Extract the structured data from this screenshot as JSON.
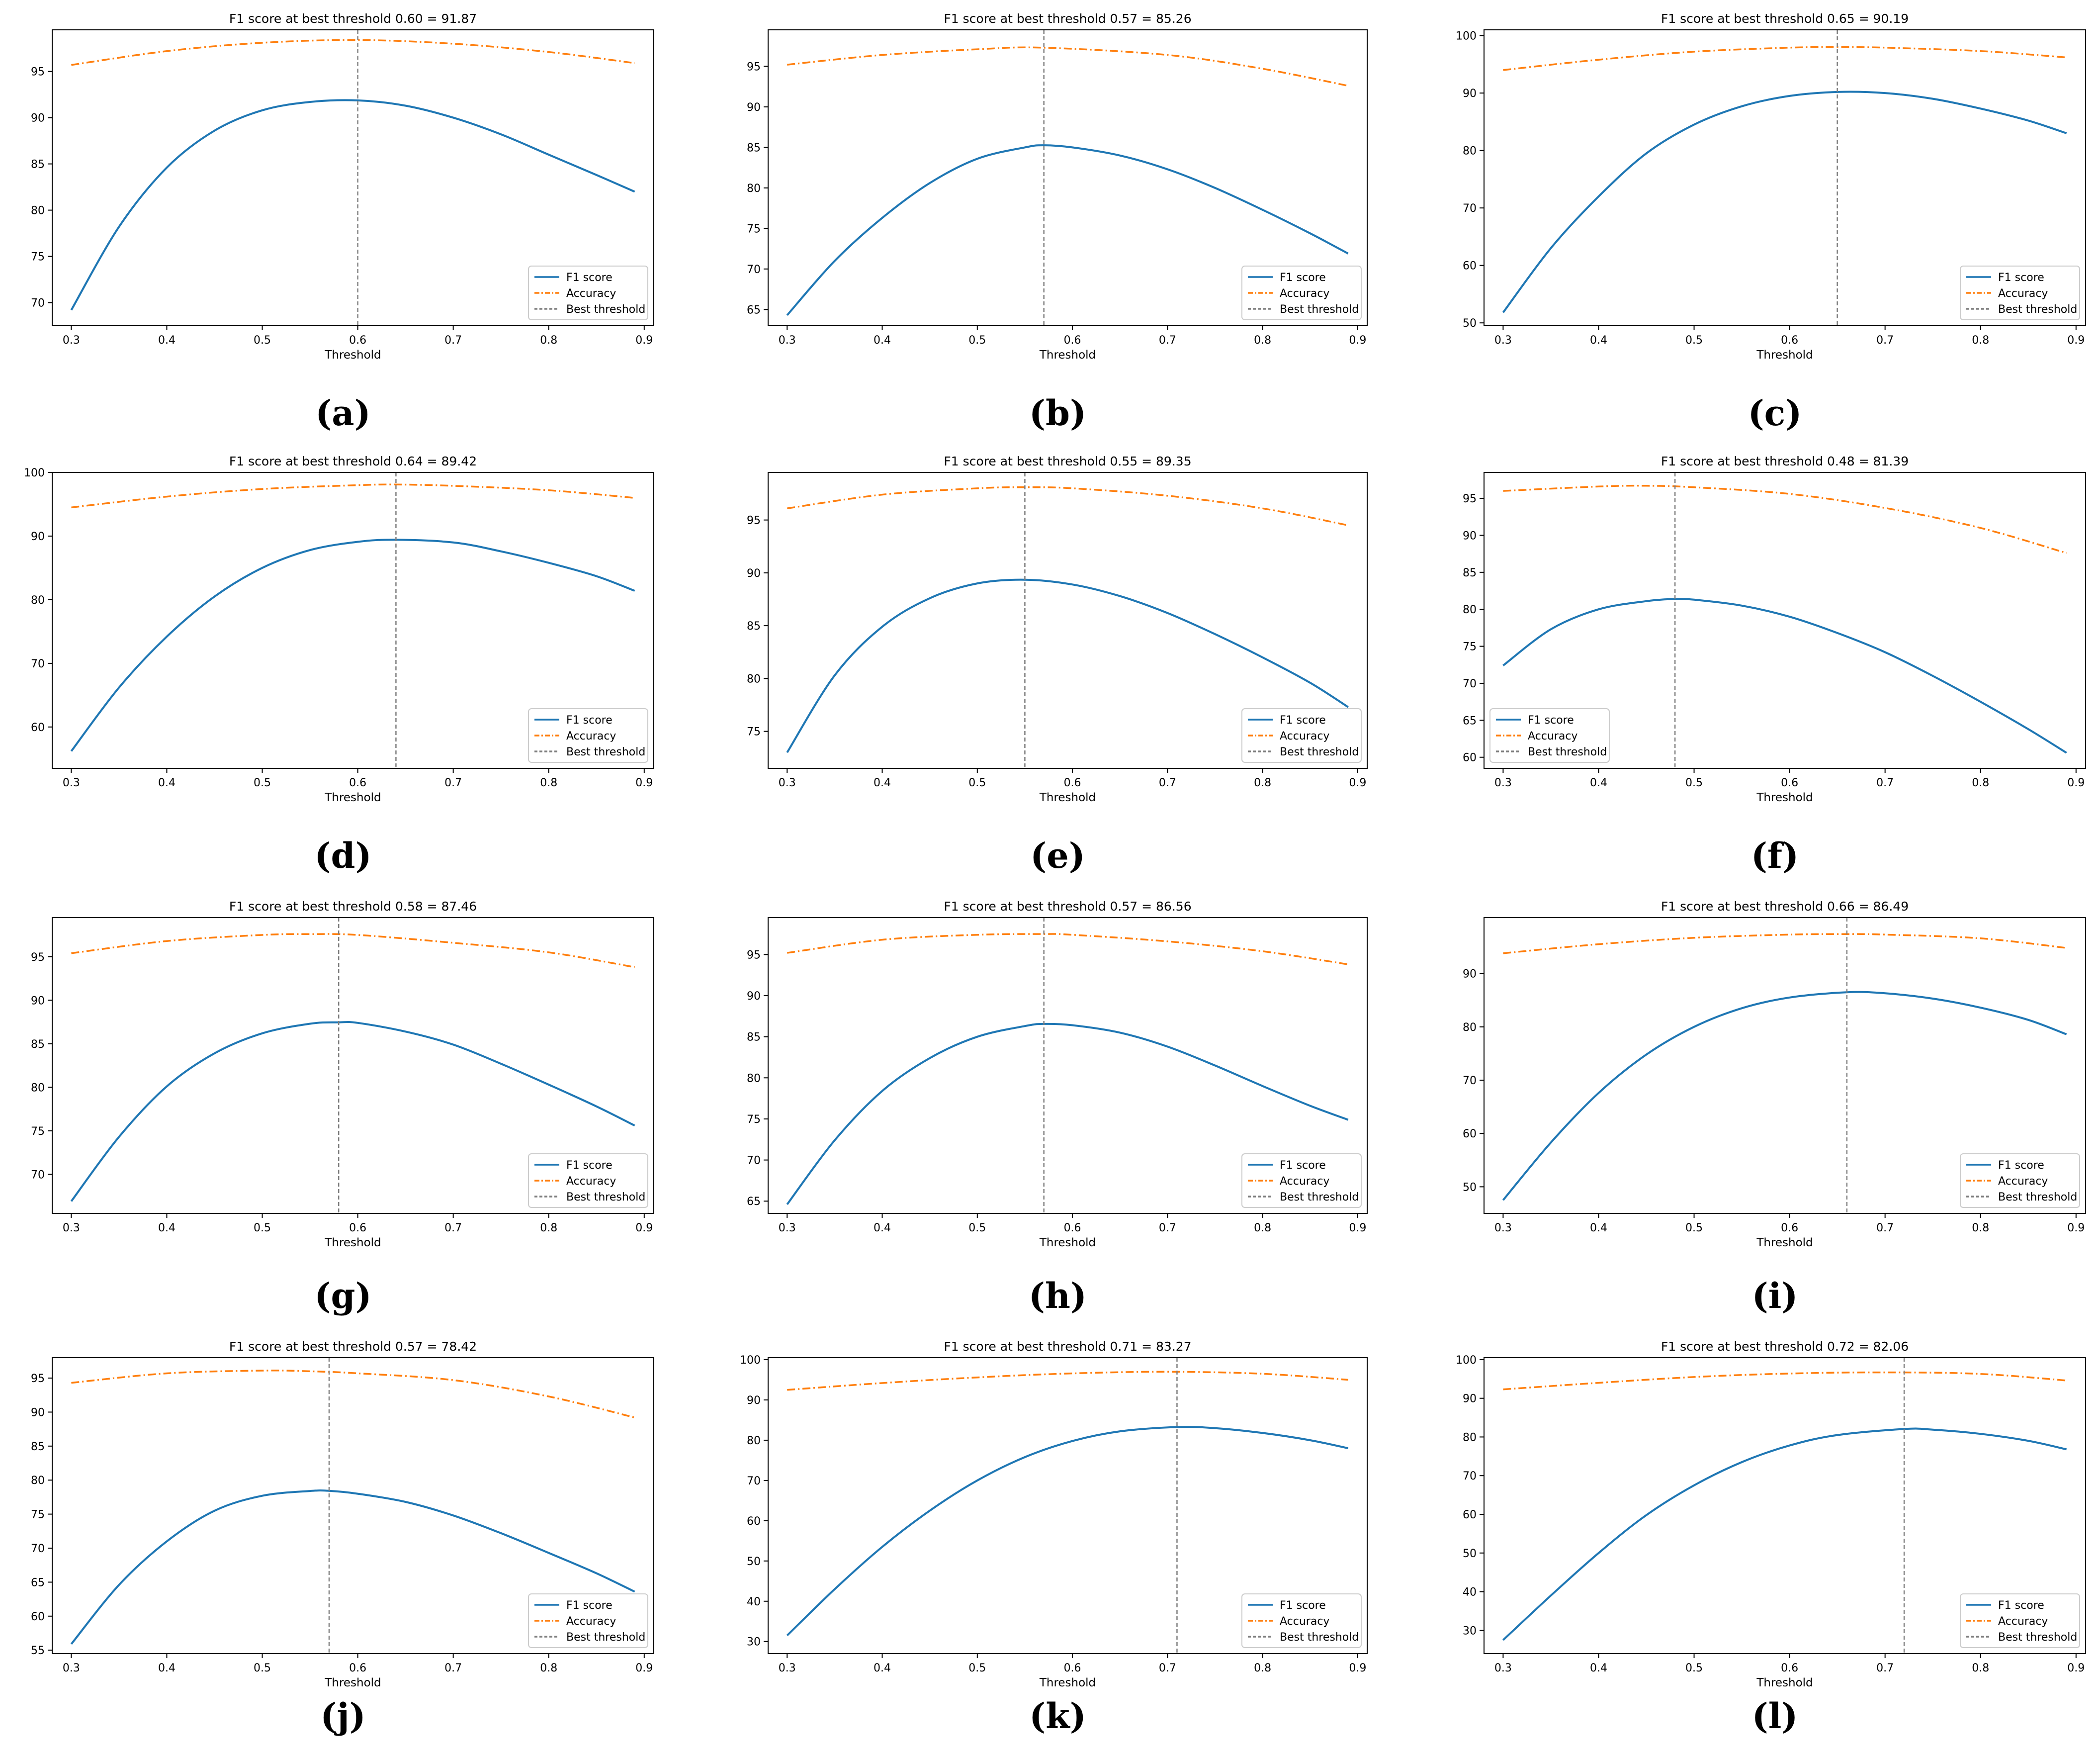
{
  "figure": {
    "panel_labels": [
      "a",
      "b",
      "c",
      "d",
      "e",
      "f",
      "g",
      "h",
      "i",
      "j",
      "k",
      "l"
    ]
  },
  "common": {
    "xlabel": "Threshold",
    "legend": [
      "F1 score",
      "Accuracy",
      "Best threshold"
    ],
    "colors": {
      "f1": "#1f77b4",
      "accuracy": "#ff7f0e",
      "best": "#7f7f7f"
    }
  },
  "chart_data": [
    {
      "type": "line",
      "panel": "a",
      "title": "F1 score at best threshold 0.60 = 91.87",
      "xlabel": "Threshold",
      "xlim": [
        0.28,
        0.91
      ],
      "ylim": [
        67.5,
        99.5
      ],
      "xticks": [
        0.3,
        0.4,
        0.5,
        0.6,
        0.7,
        0.8,
        0.9
      ],
      "yticks": [
        70,
        75,
        80,
        85,
        90,
        95
      ],
      "best_threshold": 0.6,
      "legend_position": "lower-right",
      "series": [
        {
          "name": "F1 score",
          "x": [
            0.3,
            0.35,
            0.4,
            0.45,
            0.5,
            0.55,
            0.6,
            0.65,
            0.7,
            0.75,
            0.8,
            0.85,
            0.89
          ],
          "y": [
            69.2,
            78.2,
            84.6,
            88.6,
            90.8,
            91.7,
            91.87,
            91.3,
            90.0,
            88.2,
            86.0,
            83.8,
            82.0
          ]
        },
        {
          "name": "Accuracy",
          "x": [
            0.3,
            0.4,
            0.5,
            0.6,
            0.7,
            0.8,
            0.89
          ],
          "y": [
            95.7,
            97.2,
            98.1,
            98.4,
            98.0,
            97.1,
            95.9
          ]
        }
      ]
    },
    {
      "type": "line",
      "panel": "b",
      "title": "F1 score at best threshold 0.57 = 85.26",
      "xlabel": "Threshold",
      "xlim": [
        0.28,
        0.91
      ],
      "ylim": [
        63,
        99.5
      ],
      "xticks": [
        0.3,
        0.4,
        0.5,
        0.6,
        0.7,
        0.8,
        0.9
      ],
      "yticks": [
        65,
        70,
        75,
        80,
        85,
        90,
        95
      ],
      "best_threshold": 0.57,
      "legend_position": "lower-right",
      "series": [
        {
          "name": "F1 score",
          "x": [
            0.3,
            0.35,
            0.4,
            0.45,
            0.5,
            0.55,
            0.57,
            0.6,
            0.65,
            0.7,
            0.75,
            0.8,
            0.85,
            0.89
          ],
          "y": [
            64.3,
            71.0,
            76.3,
            80.6,
            83.6,
            85.0,
            85.26,
            85.0,
            84.0,
            82.3,
            80.0,
            77.3,
            74.4,
            71.9
          ]
        },
        {
          "name": "Accuracy",
          "x": [
            0.3,
            0.4,
            0.5,
            0.57,
            0.7,
            0.8,
            0.89
          ],
          "y": [
            95.2,
            96.4,
            97.1,
            97.3,
            96.4,
            94.7,
            92.6
          ]
        }
      ]
    },
    {
      "type": "line",
      "panel": "c",
      "title": "F1 score at best threshold 0.65 = 90.19",
      "xlabel": "Threshold",
      "xlim": [
        0.28,
        0.91
      ],
      "ylim": [
        49.5,
        101
      ],
      "xticks": [
        0.3,
        0.4,
        0.5,
        0.6,
        0.7,
        0.8,
        0.9
      ],
      "yticks": [
        50,
        60,
        70,
        80,
        90,
        100
      ],
      "best_threshold": 0.65,
      "legend_position": "lower-right",
      "series": [
        {
          "name": "F1 score",
          "x": [
            0.3,
            0.35,
            0.4,
            0.45,
            0.5,
            0.55,
            0.6,
            0.65,
            0.7,
            0.75,
            0.8,
            0.85,
            0.89
          ],
          "y": [
            51.8,
            63.0,
            72.0,
            79.5,
            84.5,
            87.7,
            89.5,
            90.19,
            90.0,
            89.0,
            87.3,
            85.2,
            83.0
          ]
        },
        {
          "name": "Accuracy",
          "x": [
            0.3,
            0.4,
            0.5,
            0.6,
            0.65,
            0.7,
            0.8,
            0.89
          ],
          "y": [
            94.0,
            95.8,
            97.2,
            97.9,
            98.0,
            97.9,
            97.3,
            96.2
          ]
        }
      ]
    },
    {
      "type": "line",
      "panel": "d",
      "title": "F1 score at best threshold 0.64 = 89.42",
      "xlabel": "Threshold",
      "xlim": [
        0.28,
        0.91
      ],
      "ylim": [
        53.5,
        100
      ],
      "xticks": [
        0.3,
        0.4,
        0.5,
        0.6,
        0.7,
        0.8,
        0.9
      ],
      "yticks": [
        60,
        70,
        80,
        90,
        100
      ],
      "best_threshold": 0.64,
      "legend_position": "lower-right",
      "series": [
        {
          "name": "F1 score",
          "x": [
            0.3,
            0.35,
            0.4,
            0.45,
            0.5,
            0.55,
            0.6,
            0.64,
            0.7,
            0.75,
            0.8,
            0.85,
            0.89
          ],
          "y": [
            56.2,
            66.2,
            74.2,
            80.5,
            85.0,
            87.8,
            89.1,
            89.42,
            89.0,
            87.6,
            85.8,
            83.7,
            81.4
          ]
        },
        {
          "name": "Accuracy",
          "x": [
            0.3,
            0.4,
            0.5,
            0.6,
            0.64,
            0.7,
            0.8,
            0.89
          ],
          "y": [
            94.5,
            96.2,
            97.4,
            98.0,
            98.1,
            97.9,
            97.2,
            96.0
          ]
        }
      ]
    },
    {
      "type": "line",
      "panel": "e",
      "title": "F1 score at best threshold 0.55 = 89.35",
      "xlabel": "Threshold",
      "xlim": [
        0.28,
        0.91
      ],
      "ylim": [
        71.5,
        99.5
      ],
      "xticks": [
        0.3,
        0.4,
        0.5,
        0.6,
        0.7,
        0.8,
        0.9
      ],
      "yticks": [
        75,
        80,
        85,
        90,
        95
      ],
      "best_threshold": 0.55,
      "legend_position": "lower-right",
      "series": [
        {
          "name": "F1 score",
          "x": [
            0.3,
            0.35,
            0.4,
            0.45,
            0.5,
            0.55,
            0.6,
            0.65,
            0.7,
            0.75,
            0.8,
            0.85,
            0.89
          ],
          "y": [
            73.0,
            80.3,
            84.9,
            87.6,
            89.0,
            89.35,
            88.9,
            87.8,
            86.2,
            84.2,
            82.0,
            79.6,
            77.3
          ]
        },
        {
          "name": "Accuracy",
          "x": [
            0.3,
            0.4,
            0.5,
            0.55,
            0.6,
            0.7,
            0.8,
            0.89
          ],
          "y": [
            96.1,
            97.4,
            98.0,
            98.1,
            98.0,
            97.3,
            96.1,
            94.5
          ]
        }
      ]
    },
    {
      "type": "line",
      "panel": "f",
      "title": "F1 score at best threshold 0.48 = 81.39",
      "xlabel": "Threshold",
      "xlim": [
        0.28,
        0.91
      ],
      "ylim": [
        58.5,
        98.5
      ],
      "xticks": [
        0.3,
        0.4,
        0.5,
        0.6,
        0.7,
        0.8,
        0.9
      ],
      "yticks": [
        60,
        65,
        70,
        75,
        80,
        85,
        90,
        95
      ],
      "best_threshold": 0.48,
      "legend_position": "lower-left",
      "series": [
        {
          "name": "F1 score",
          "x": [
            0.3,
            0.35,
            0.4,
            0.45,
            0.48,
            0.5,
            0.55,
            0.6,
            0.65,
            0.7,
            0.75,
            0.8,
            0.85,
            0.89
          ],
          "y": [
            72.4,
            77.3,
            80.0,
            81.1,
            81.39,
            81.3,
            80.5,
            79.0,
            76.8,
            74.2,
            71.0,
            67.5,
            63.8,
            60.6
          ]
        },
        {
          "name": "Accuracy",
          "x": [
            0.3,
            0.4,
            0.45,
            0.5,
            0.6,
            0.7,
            0.8,
            0.89
          ],
          "y": [
            96.0,
            96.6,
            96.7,
            96.5,
            95.6,
            93.7,
            91.0,
            87.6
          ]
        }
      ]
    },
    {
      "type": "line",
      "panel": "g",
      "title": "F1 score at best threshold 0.58 = 87.46",
      "xlabel": "Threshold",
      "xlim": [
        0.28,
        0.91
      ],
      "ylim": [
        65.5,
        99.5
      ],
      "xticks": [
        0.3,
        0.4,
        0.5,
        0.6,
        0.7,
        0.8,
        0.9
      ],
      "yticks": [
        70,
        75,
        80,
        85,
        90,
        95
      ],
      "best_threshold": 0.58,
      "legend_position": "lower-right",
      "series": [
        {
          "name": "F1 score",
          "x": [
            0.3,
            0.35,
            0.4,
            0.45,
            0.5,
            0.55,
            0.58,
            0.6,
            0.65,
            0.7,
            0.75,
            0.8,
            0.85,
            0.89
          ],
          "y": [
            66.9,
            74.3,
            80.1,
            83.9,
            86.2,
            87.3,
            87.46,
            87.4,
            86.4,
            84.9,
            82.7,
            80.3,
            77.8,
            75.6
          ]
        },
        {
          "name": "Accuracy",
          "x": [
            0.3,
            0.4,
            0.5,
            0.55,
            0.6,
            0.7,
            0.8,
            0.89
          ],
          "y": [
            95.4,
            96.8,
            97.5,
            97.6,
            97.5,
            96.6,
            95.5,
            93.8
          ]
        }
      ]
    },
    {
      "type": "line",
      "panel": "h",
      "title": "F1 score at best threshold 0.57 = 86.56",
      "xlabel": "Threshold",
      "xlim": [
        0.28,
        0.91
      ],
      "ylim": [
        63.5,
        99.5
      ],
      "xticks": [
        0.3,
        0.4,
        0.5,
        0.6,
        0.7,
        0.8,
        0.9
      ],
      "yticks": [
        65,
        70,
        75,
        80,
        85,
        90,
        95
      ],
      "best_threshold": 0.57,
      "legend_position": "lower-right",
      "series": [
        {
          "name": "F1 score",
          "x": [
            0.3,
            0.35,
            0.4,
            0.45,
            0.5,
            0.55,
            0.57,
            0.6,
            0.65,
            0.7,
            0.75,
            0.8,
            0.85,
            0.89
          ],
          "y": [
            64.6,
            72.4,
            78.4,
            82.4,
            85.0,
            86.3,
            86.56,
            86.4,
            85.5,
            83.8,
            81.5,
            79.0,
            76.6,
            74.9
          ]
        },
        {
          "name": "Accuracy",
          "x": [
            0.3,
            0.4,
            0.5,
            0.57,
            0.6,
            0.7,
            0.8,
            0.89
          ],
          "y": [
            95.2,
            96.8,
            97.4,
            97.5,
            97.4,
            96.6,
            95.4,
            93.8
          ]
        }
      ]
    },
    {
      "type": "line",
      "panel": "i",
      "title": "F1 score at best threshold 0.66 = 86.49",
      "xlabel": "Threshold",
      "xlim": [
        0.28,
        0.91
      ],
      "ylim": [
        45,
        100.5
      ],
      "xticks": [
        0.3,
        0.4,
        0.5,
        0.6,
        0.7,
        0.8,
        0.9
      ],
      "yticks": [
        50,
        60,
        70,
        80,
        90
      ],
      "best_threshold": 0.66,
      "legend_position": "lower-right",
      "series": [
        {
          "name": "F1 score",
          "x": [
            0.3,
            0.35,
            0.4,
            0.45,
            0.5,
            0.55,
            0.6,
            0.66,
            0.7,
            0.75,
            0.8,
            0.85,
            0.89
          ],
          "y": [
            47.5,
            58.3,
            67.6,
            74.8,
            80.0,
            83.5,
            85.5,
            86.49,
            86.3,
            85.3,
            83.6,
            81.3,
            78.6
          ]
        },
        {
          "name": "Accuracy",
          "x": [
            0.3,
            0.4,
            0.5,
            0.6,
            0.66,
            0.7,
            0.8,
            0.89
          ],
          "y": [
            93.8,
            95.5,
            96.7,
            97.3,
            97.4,
            97.3,
            96.6,
            94.8
          ]
        }
      ]
    },
    {
      "type": "line",
      "panel": "j",
      "title": "F1 score at best threshold 0.57 = 78.42",
      "xlabel": "Threshold",
      "xlim": [
        0.28,
        0.91
      ],
      "ylim": [
        54.5,
        98
      ],
      "xticks": [
        0.3,
        0.4,
        0.5,
        0.6,
        0.7,
        0.8,
        0.9
      ],
      "yticks": [
        55,
        60,
        65,
        70,
        75,
        80,
        85,
        90,
        95
      ],
      "best_threshold": 0.57,
      "legend_position": "lower-right",
      "series": [
        {
          "name": "F1 score",
          "x": [
            0.3,
            0.35,
            0.4,
            0.45,
            0.5,
            0.55,
            0.57,
            0.6,
            0.65,
            0.7,
            0.75,
            0.8,
            0.85,
            0.89
          ],
          "y": [
            55.9,
            64.6,
            71.0,
            75.5,
            77.7,
            78.4,
            78.42,
            78.0,
            76.8,
            74.8,
            72.2,
            69.3,
            66.3,
            63.6
          ]
        },
        {
          "name": "Accuracy",
          "x": [
            0.3,
            0.4,
            0.5,
            0.55,
            0.6,
            0.7,
            0.8,
            0.89
          ],
          "y": [
            94.3,
            95.7,
            96.1,
            96.0,
            95.7,
            94.7,
            92.3,
            89.2
          ]
        }
      ]
    },
    {
      "type": "line",
      "panel": "k",
      "title": "F1 score at best threshold 0.71 = 83.27",
      "xlabel": "Threshold",
      "xlim": [
        0.28,
        0.91
      ],
      "ylim": [
        27,
        100.5
      ],
      "xticks": [
        0.3,
        0.4,
        0.5,
        0.6,
        0.7,
        0.8,
        0.9
      ],
      "yticks": [
        30,
        40,
        50,
        60,
        70,
        80,
        90,
        100
      ],
      "best_threshold": 0.71,
      "legend_position": "lower-right",
      "series": [
        {
          "name": "F1 score",
          "x": [
            0.3,
            0.35,
            0.4,
            0.45,
            0.5,
            0.55,
            0.6,
            0.65,
            0.71,
            0.75,
            0.8,
            0.85,
            0.89
          ],
          "y": [
            31.5,
            43.0,
            53.5,
            62.5,
            70.0,
            75.8,
            79.8,
            82.2,
            83.27,
            83.0,
            81.8,
            80.0,
            78.0
          ]
        },
        {
          "name": "Accuracy",
          "x": [
            0.3,
            0.4,
            0.5,
            0.6,
            0.7,
            0.8,
            0.89
          ],
          "y": [
            92.5,
            94.2,
            95.6,
            96.6,
            97.0,
            96.5,
            95.0
          ]
        }
      ]
    },
    {
      "type": "line",
      "panel": "l",
      "title": "F1 score at best threshold 0.72 = 82.06",
      "xlabel": "Threshold",
      "xlim": [
        0.28,
        0.91
      ],
      "ylim": [
        24,
        100.5
      ],
      "xticks": [
        0.3,
        0.4,
        0.5,
        0.6,
        0.7,
        0.8,
        0.9
      ],
      "yticks": [
        30,
        40,
        50,
        60,
        70,
        80,
        90,
        100
      ],
      "best_threshold": 0.72,
      "legend_position": "lower-right",
      "series": [
        {
          "name": "F1 score",
          "x": [
            0.3,
            0.35,
            0.4,
            0.45,
            0.5,
            0.55,
            0.6,
            0.65,
            0.72,
            0.75,
            0.8,
            0.85,
            0.89
          ],
          "y": [
            27.5,
            39.0,
            50.0,
            59.8,
            67.5,
            73.5,
            77.8,
            80.5,
            82.06,
            81.9,
            80.8,
            79.0,
            76.8
          ]
        },
        {
          "name": "Accuracy",
          "x": [
            0.3,
            0.4,
            0.5,
            0.6,
            0.7,
            0.8,
            0.89
          ],
          "y": [
            92.3,
            94.0,
            95.5,
            96.4,
            96.7,
            96.3,
            94.6
          ]
        }
      ]
    }
  ]
}
